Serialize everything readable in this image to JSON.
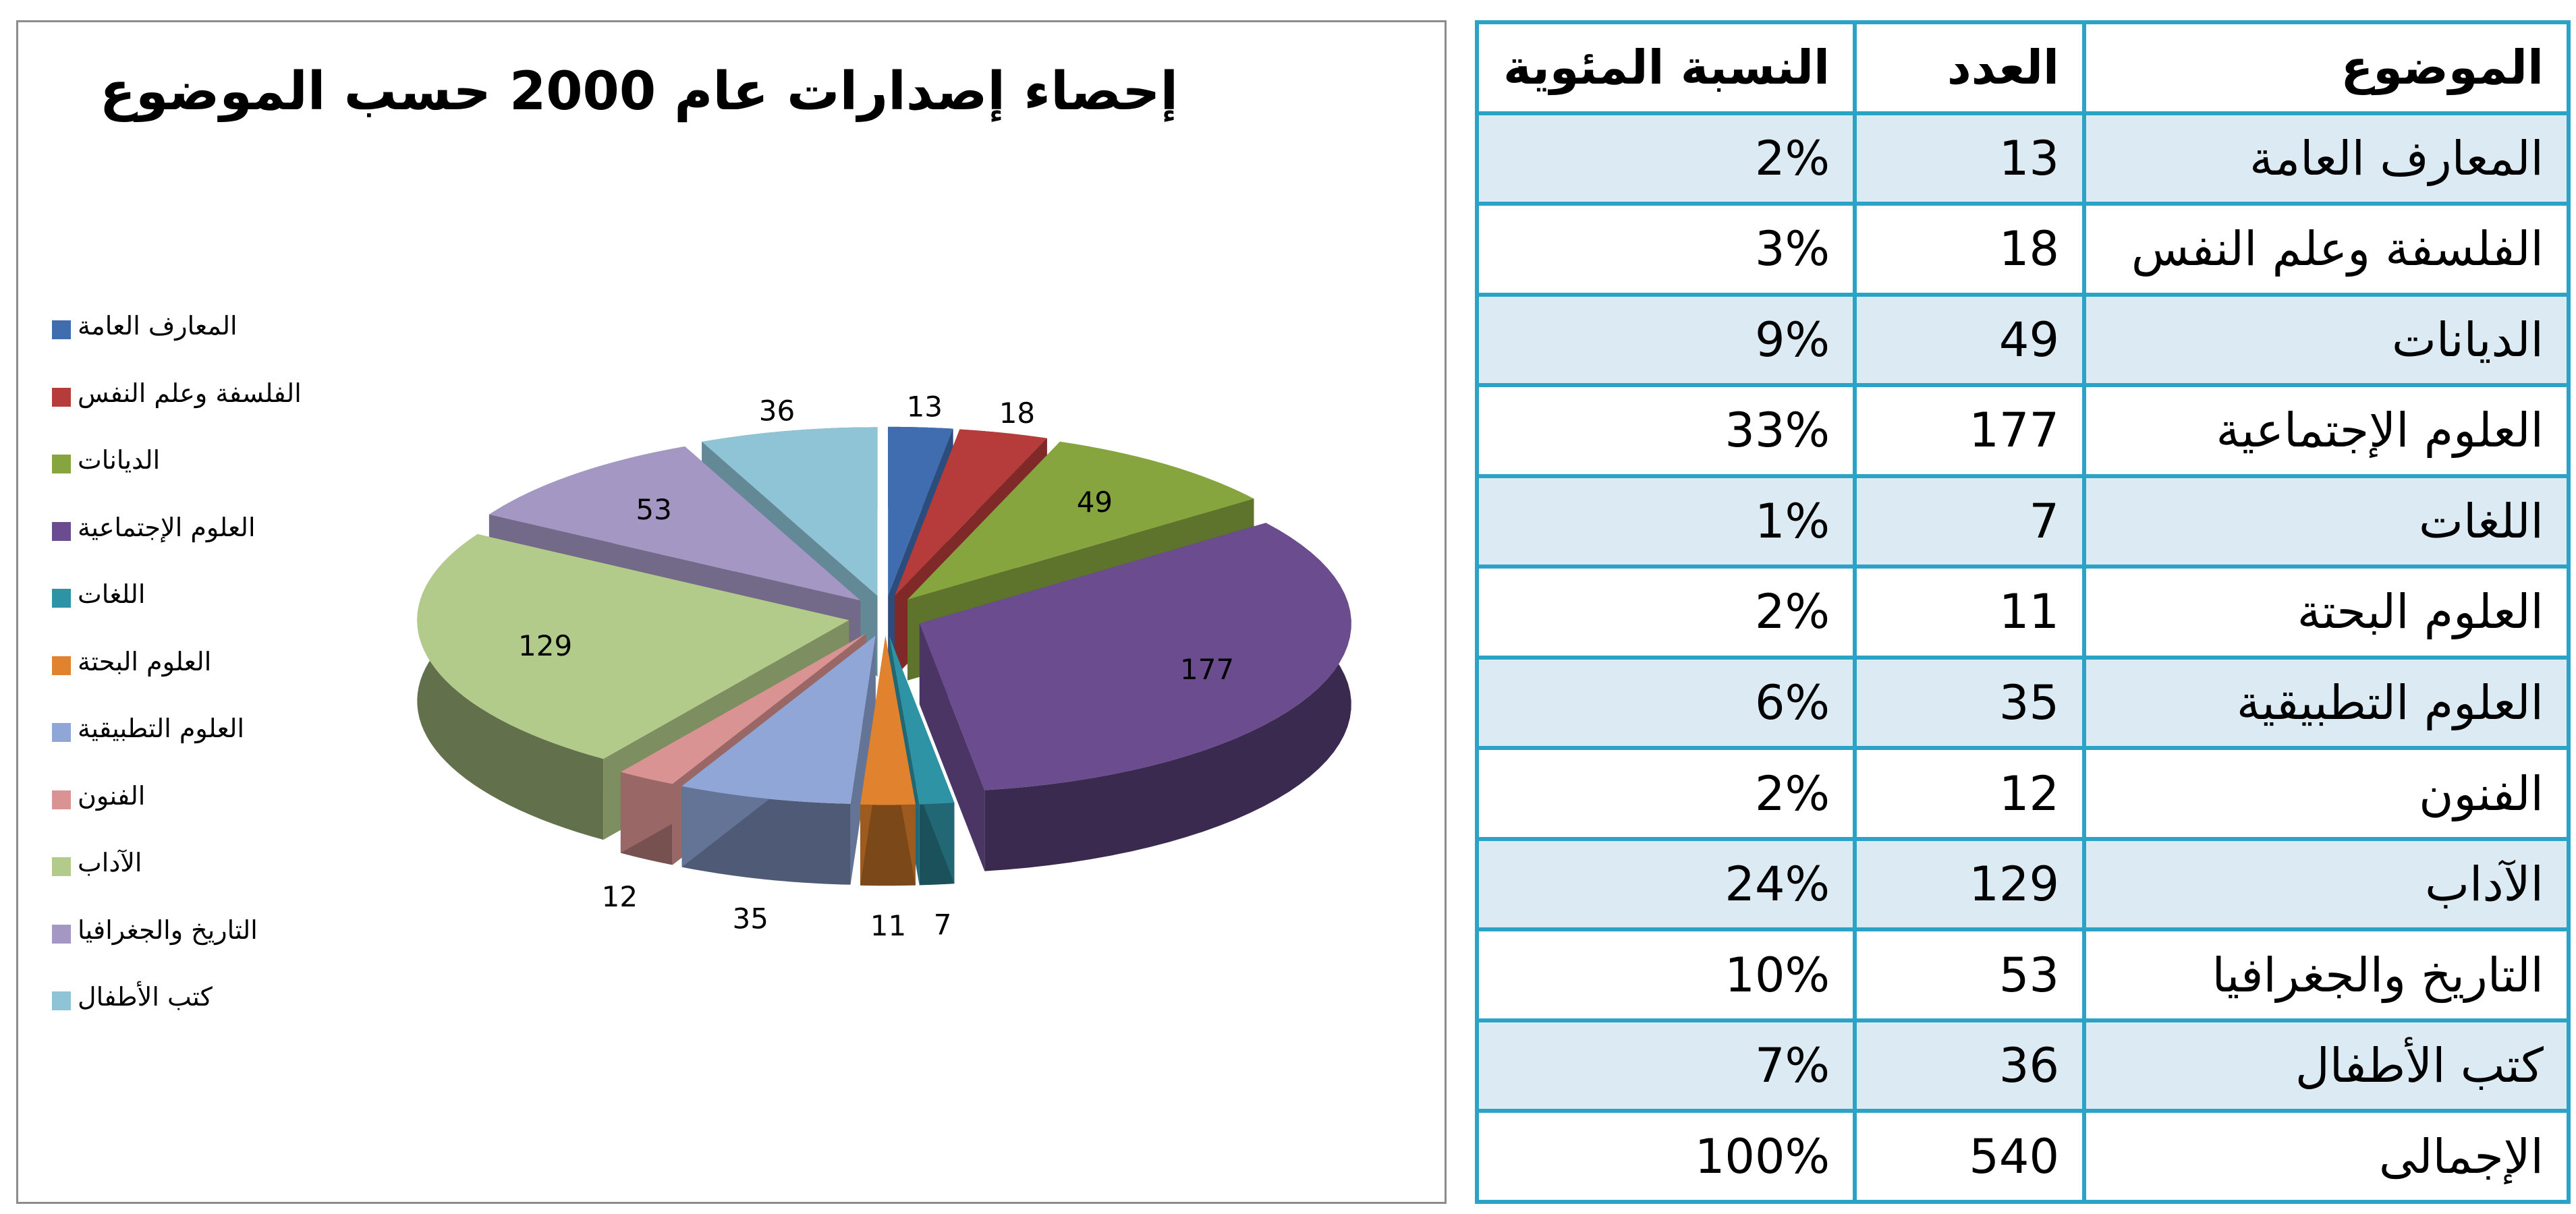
{
  "chart_data": {
    "type": "pie",
    "title": "إحصاء إصدارات عام 2000 حسب الموضوع",
    "categories": [
      "المعارف العامة",
      "الفلسفة وعلم النفس",
      "الديانات",
      "العلوم الإجتماعية",
      "اللغات",
      "العلوم البحتة",
      "العلوم التطبيقية",
      "الفنون",
      "الآداب",
      "التاريخ والجغرافيا",
      "كتب الأطفال"
    ],
    "values": [
      13,
      18,
      49,
      177,
      7,
      11,
      35,
      12,
      129,
      53,
      36
    ],
    "colors": [
      "#3f6db0",
      "#b53c3a",
      "#86a53e",
      "#6a4c8f",
      "#2f93a6",
      "#e0822e",
      "#8fa6d6",
      "#d99392",
      "#b3cb8a",
      "#a597c3",
      "#8fc3d6"
    ],
    "legend_position": "left",
    "exploded": true,
    "three_d": true
  },
  "table": {
    "headers": {
      "subject": "الموضوع",
      "count": "العدد",
      "percent": "النسبة المئوية"
    },
    "rows": [
      {
        "subject": "المعارف العامة",
        "count": "13",
        "percent": "2%"
      },
      {
        "subject": "الفلسفة وعلم النفس",
        "count": "18",
        "percent": "3%"
      },
      {
        "subject": "الديانات",
        "count": "49",
        "percent": "9%"
      },
      {
        "subject": "العلوم الإجتماعية",
        "count": "177",
        "percent": "33%"
      },
      {
        "subject": "اللغات",
        "count": "7",
        "percent": "1%"
      },
      {
        "subject": "العلوم البحتة",
        "count": "11",
        "percent": "2%"
      },
      {
        "subject": "العلوم التطبيقية",
        "count": "35",
        "percent": "6%"
      },
      {
        "subject": "الفنون",
        "count": "12",
        "percent": "2%"
      },
      {
        "subject": "الآداب",
        "count": "129",
        "percent": "24%"
      },
      {
        "subject": "التاريخ والجغرافيا",
        "count": "53",
        "percent": "10%"
      },
      {
        "subject": "كتب الأطفال",
        "count": "36",
        "percent": "7%"
      },
      {
        "subject": "الإجمالى",
        "count": "540",
        "percent": "100%"
      }
    ]
  }
}
